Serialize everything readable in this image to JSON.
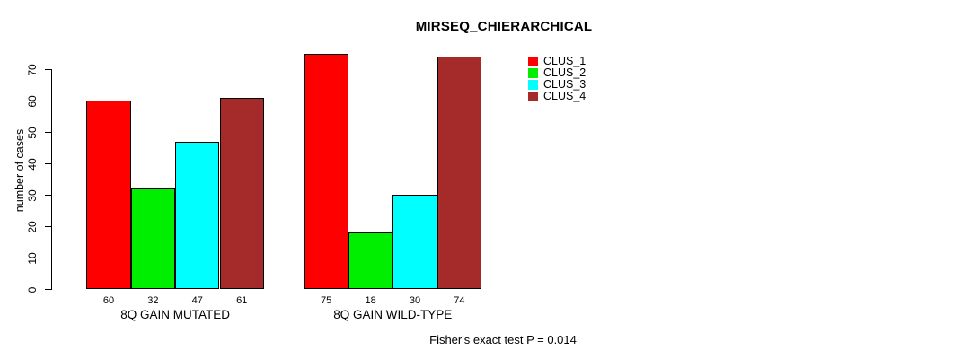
{
  "chart_data": {
    "type": "bar",
    "title": "MIRSEQ_CHIERARCHICAL",
    "ylabel": "number of cases",
    "xlabel": "",
    "ylim": [
      0,
      70
    ],
    "yticks": [
      0,
      10,
      20,
      30,
      40,
      50,
      60,
      70
    ],
    "grid": false,
    "legend_position": "top-right",
    "categories": [
      "8Q GAIN MUTATED",
      "8Q GAIN WILD-TYPE"
    ],
    "series": [
      {
        "name": "CLUS_1",
        "color": "#FF0000",
        "values": [
          60,
          75
        ]
      },
      {
        "name": "CLUS_2",
        "color": "#00EE00",
        "values": [
          32,
          18
        ]
      },
      {
        "name": "CLUS_3",
        "color": "#00FFFF",
        "values": [
          47,
          30
        ]
      },
      {
        "name": "CLUS_4",
        "color": "#A52A2A",
        "values": [
          61,
          74
        ]
      }
    ],
    "bar_border_color": "#000000",
    "bar_value_labels_shown": true,
    "annotation": "Fisher's exact test P = 0.014"
  }
}
